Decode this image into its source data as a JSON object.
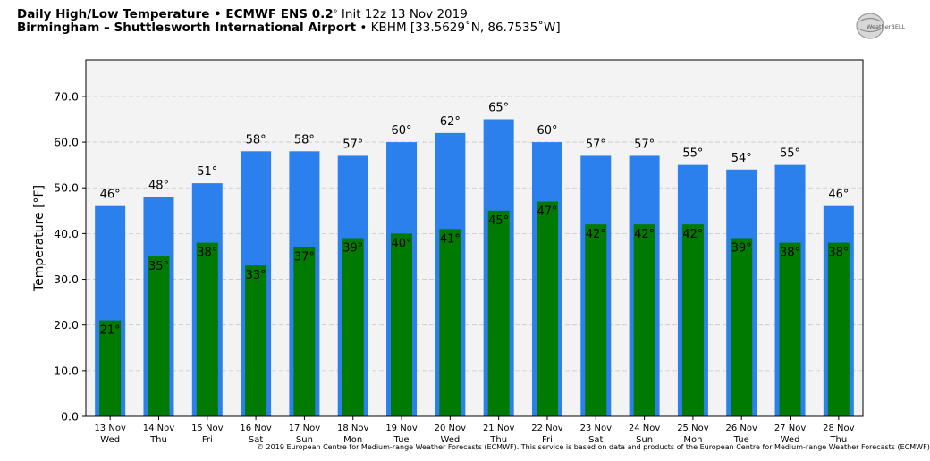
{
  "header": {
    "title_bold": "Daily High/Low Temperature • ECMWF ENS 0.2",
    "title_deg": "°",
    "title_init": " Init 12z 13 Nov 2019",
    "location_bold": "Birmingham – Shuttlesworth International Airport",
    "location_rest": " • KBHM [33.5629˚N, 86.7535˚W]"
  },
  "logo": {
    "text": "WeatherBELL",
    "icon": "weatherbell-globe-logo"
  },
  "copyright": "© 2019 European Centre for Medium-range Weather Forecasts (ECMWF). This service is based on data and products of the European Centre for Medium-range Weather Forecasts (ECMWF)",
  "chart_data": {
    "type": "bar",
    "title": "Daily High/Low Temperature • ECMWF ENS 0.2° Init 12z 13 Nov 2019",
    "ylabel": "Temperature [°F]",
    "xlabel": "",
    "ylim": [
      0,
      78
    ],
    "yticks": [
      0,
      10,
      20,
      30,
      40,
      50,
      60,
      70
    ],
    "grid": true,
    "legend": "none",
    "categories": [
      "13 Nov",
      "14 Nov",
      "15 Nov",
      "16 Nov",
      "17 Nov",
      "18 Nov",
      "19 Nov",
      "20 Nov",
      "21 Nov",
      "22 Nov",
      "23 Nov",
      "24 Nov",
      "25 Nov",
      "26 Nov",
      "27 Nov",
      "28 Nov"
    ],
    "weekdays": [
      "Wed",
      "Thu",
      "Fri",
      "Sat",
      "Sun",
      "Mon",
      "Tue",
      "Wed",
      "Thu",
      "Fri",
      "Sat",
      "Sun",
      "Mon",
      "Tue",
      "Wed",
      "Thu"
    ],
    "series": [
      {
        "values": [
          46,
          48,
          51,
          58,
          58,
          57,
          60,
          62,
          65,
          60,
          57,
          57,
          55,
          54,
          55,
          46
        ],
        "color": "#2b80ee"
      },
      {
        "values": [
          21,
          35,
          38,
          33,
          37,
          39,
          40,
          41,
          45,
          47,
          42,
          42,
          42,
          39,
          38,
          38
        ],
        "color": "#007a00"
      }
    ],
    "colors": {
      "plot_bg": "#f3f3f3",
      "grid": "#c8c8c8"
    }
  }
}
